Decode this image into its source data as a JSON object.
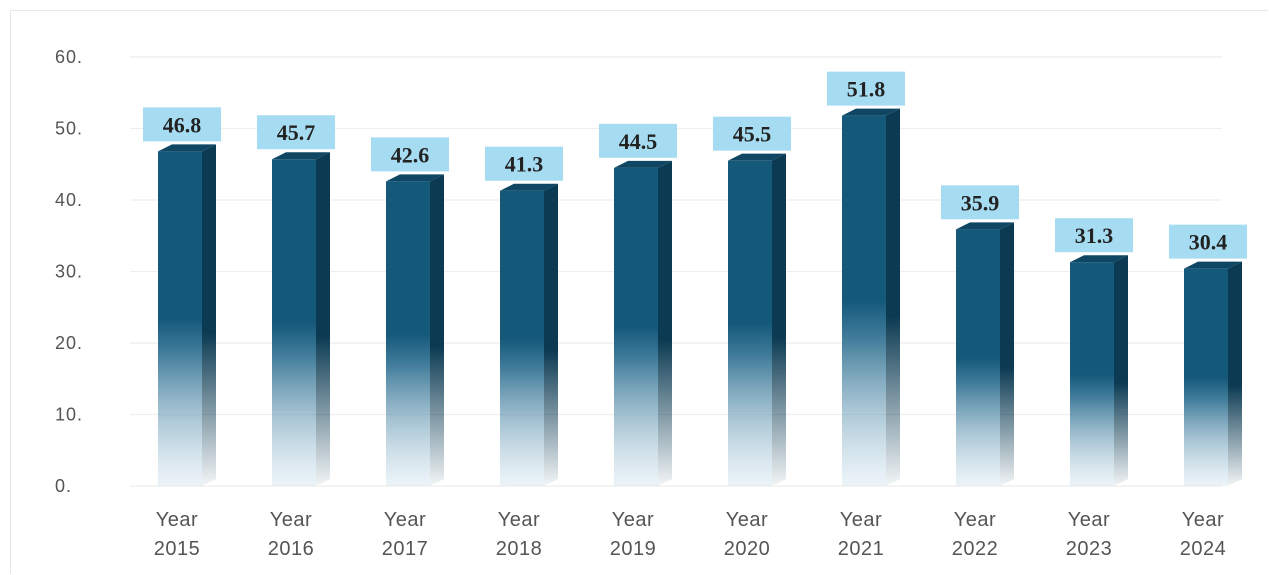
{
  "chart_data": {
    "type": "bar",
    "categories": [
      [
        "Year",
        "2015"
      ],
      [
        "Year",
        "2016"
      ],
      [
        "Year",
        "2017"
      ],
      [
        "Year",
        "2018"
      ],
      [
        "Year",
        "2019"
      ],
      [
        "Year",
        "2020"
      ],
      [
        "Year",
        "2021"
      ],
      [
        "Year",
        "2022"
      ],
      [
        "Year",
        "2023"
      ],
      [
        "Year",
        "2024"
      ]
    ],
    "values": [
      46.8,
      45.7,
      42.6,
      41.3,
      44.5,
      45.5,
      51.8,
      35.9,
      31.3,
      30.4
    ],
    "data_labels": [
      "46.8",
      "45.7",
      "42.6",
      "41.3",
      "44.5",
      "45.5",
      "51.8",
      "35.9",
      "31.3",
      "30.4"
    ],
    "yticks": [
      0,
      10,
      20,
      30,
      40,
      50,
      60
    ],
    "ytick_labels": [
      "0.",
      "10.",
      "20.",
      "30.",
      "40.",
      "50.",
      "60."
    ],
    "ylim": [
      0,
      60
    ],
    "grid": true,
    "title": "",
    "xlabel": "",
    "ylabel": "",
    "colors": {
      "bar_front": "#14587a",
      "bar_side": "#0b3a52",
      "bar_top": "#0e4663",
      "label_bg": "#a6dcf2",
      "grid": "#eeeeee"
    }
  }
}
